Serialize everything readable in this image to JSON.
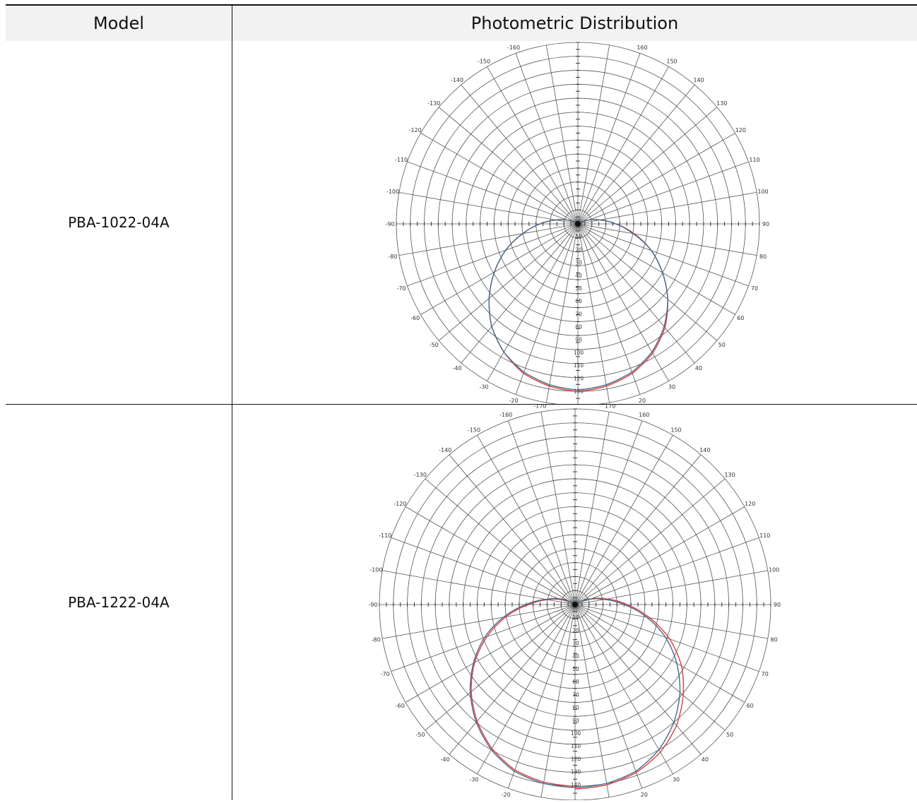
{
  "table": {
    "header": {
      "model": "Model",
      "distribution": "Photometric Distribution"
    },
    "rows": [
      {
        "model": "PBA-1022-04A"
      },
      {
        "model": "PBA-1222-04A"
      }
    ]
  },
  "chart_data": [
    {
      "type": "polar",
      "angle_labels": [
        -170,
        -160,
        -150,
        -140,
        -130,
        -120,
        -110,
        -100,
        -90,
        -80,
        -70,
        -60,
        -50,
        -40,
        -30,
        -20,
        -10,
        0,
        10,
        20,
        30,
        40,
        50,
        60,
        70,
        80,
        90,
        100,
        110,
        120,
        130,
        140,
        150,
        160,
        170,
        180
      ],
      "radial_labels": [
        10,
        20,
        30,
        40,
        50,
        60,
        70,
        80,
        90,
        100,
        110,
        120,
        130
      ],
      "r_max": 130,
      "grid": true,
      "series": [
        {
          "color": "#e23a3a",
          "angles": [
            0,
            10,
            20,
            30,
            40,
            50,
            60,
            70,
            80,
            90,
            100,
            110,
            120,
            130,
            140,
            150,
            160,
            170,
            180
          ],
          "values": [
            120,
            118,
            114,
            107,
            97,
            84,
            70,
            56,
            41,
            27,
            16,
            8,
            3,
            1,
            0,
            0,
            0,
            0,
            0
          ]
        },
        {
          "color": "#e23a3a",
          "angles": [
            0,
            -10,
            -20,
            -30,
            -40,
            -50,
            -60,
            -70,
            -80,
            -90,
            -100,
            -110,
            -120,
            -130,
            -140,
            -150,
            -160,
            -170,
            -180
          ],
          "values": [
            120,
            118,
            114,
            106,
            96,
            83,
            69,
            55,
            40,
            27,
            16,
            8,
            3,
            1,
            0,
            0,
            0,
            0,
            0
          ]
        },
        {
          "color": "#3e6d8d",
          "angles": [
            0,
            10,
            20,
            30,
            40,
            50,
            60,
            70,
            80,
            90,
            100,
            110,
            120,
            130,
            140,
            150,
            160,
            170,
            180
          ],
          "values": [
            119,
            117,
            113,
            106,
            96,
            84,
            70,
            56,
            40,
            27,
            16,
            8,
            3,
            1,
            0,
            0,
            0,
            0,
            0
          ]
        },
        {
          "color": "#3e6d8d",
          "angles": [
            0,
            -10,
            -20,
            -30,
            -40,
            -50,
            -60,
            -70,
            -80,
            -90,
            -100,
            -110,
            -120,
            -130,
            -140,
            -150,
            -160,
            -170,
            -180
          ],
          "values": [
            119,
            117,
            113,
            106,
            96,
            83,
            69,
            55,
            40,
            27,
            16,
            8,
            3,
            1,
            0,
            0,
            0,
            0,
            0
          ]
        }
      ]
    },
    {
      "type": "polar",
      "angle_labels": [
        -170,
        -160,
        -150,
        -140,
        -130,
        -120,
        -110,
        -100,
        -90,
        -80,
        -70,
        -60,
        -50,
        -40,
        -30,
        -20,
        -10,
        0,
        10,
        20,
        30,
        40,
        50,
        60,
        70,
        80,
        90,
        100,
        110,
        120,
        130,
        140,
        150,
        160,
        170,
        180
      ],
      "radial_labels": [
        10,
        20,
        30,
        40,
        50,
        60,
        70,
        80,
        90,
        100,
        110,
        120,
        130,
        140
      ],
      "r_max": 140,
      "grid": true,
      "series": [
        {
          "color": "#e23a3a",
          "angles": [
            0,
            10,
            20,
            30,
            40,
            50,
            60,
            70,
            80,
            90,
            100,
            110,
            120,
            130,
            140,
            150,
            160,
            170,
            180
          ],
          "values": [
            132,
            131,
            128,
            122,
            113,
            101,
            88,
            72,
            54,
            37,
            23,
            12,
            5,
            1,
            0,
            0,
            0,
            0,
            0
          ]
        },
        {
          "color": "#e23a3a",
          "angles": [
            0,
            -10,
            -20,
            -30,
            -40,
            -50,
            -60,
            -70,
            -80,
            -90,
            -100,
            -110,
            -120,
            -130,
            -140,
            -150,
            -160,
            -170,
            -180
          ],
          "values": [
            130,
            129,
            126,
            119,
            109,
            97,
            83,
            67,
            50,
            33,
            20,
            10,
            4,
            1,
            0,
            0,
            0,
            0,
            0
          ]
        },
        {
          "color": "#3e6d8d",
          "angles": [
            0,
            10,
            20,
            30,
            40,
            50,
            60,
            70,
            80,
            90,
            100,
            110,
            120,
            130,
            140,
            150,
            160,
            170,
            180
          ],
          "values": [
            131,
            130,
            127,
            120,
            110,
            98,
            84,
            69,
            52,
            35,
            21,
            11,
            4,
            1,
            0,
            0,
            0,
            0,
            0
          ]
        },
        {
          "color": "#3e6d8d",
          "angles": [
            0,
            -10,
            -20,
            -30,
            -40,
            -50,
            -60,
            -70,
            -80,
            -90,
            -100,
            -110,
            -120,
            -130,
            -140,
            -150,
            -160,
            -170,
            -180
          ],
          "values": [
            131,
            130,
            127,
            120,
            110,
            98,
            84,
            69,
            52,
            35,
            21,
            12,
            5,
            1,
            0,
            0,
            0,
            0,
            0
          ]
        }
      ]
    }
  ]
}
